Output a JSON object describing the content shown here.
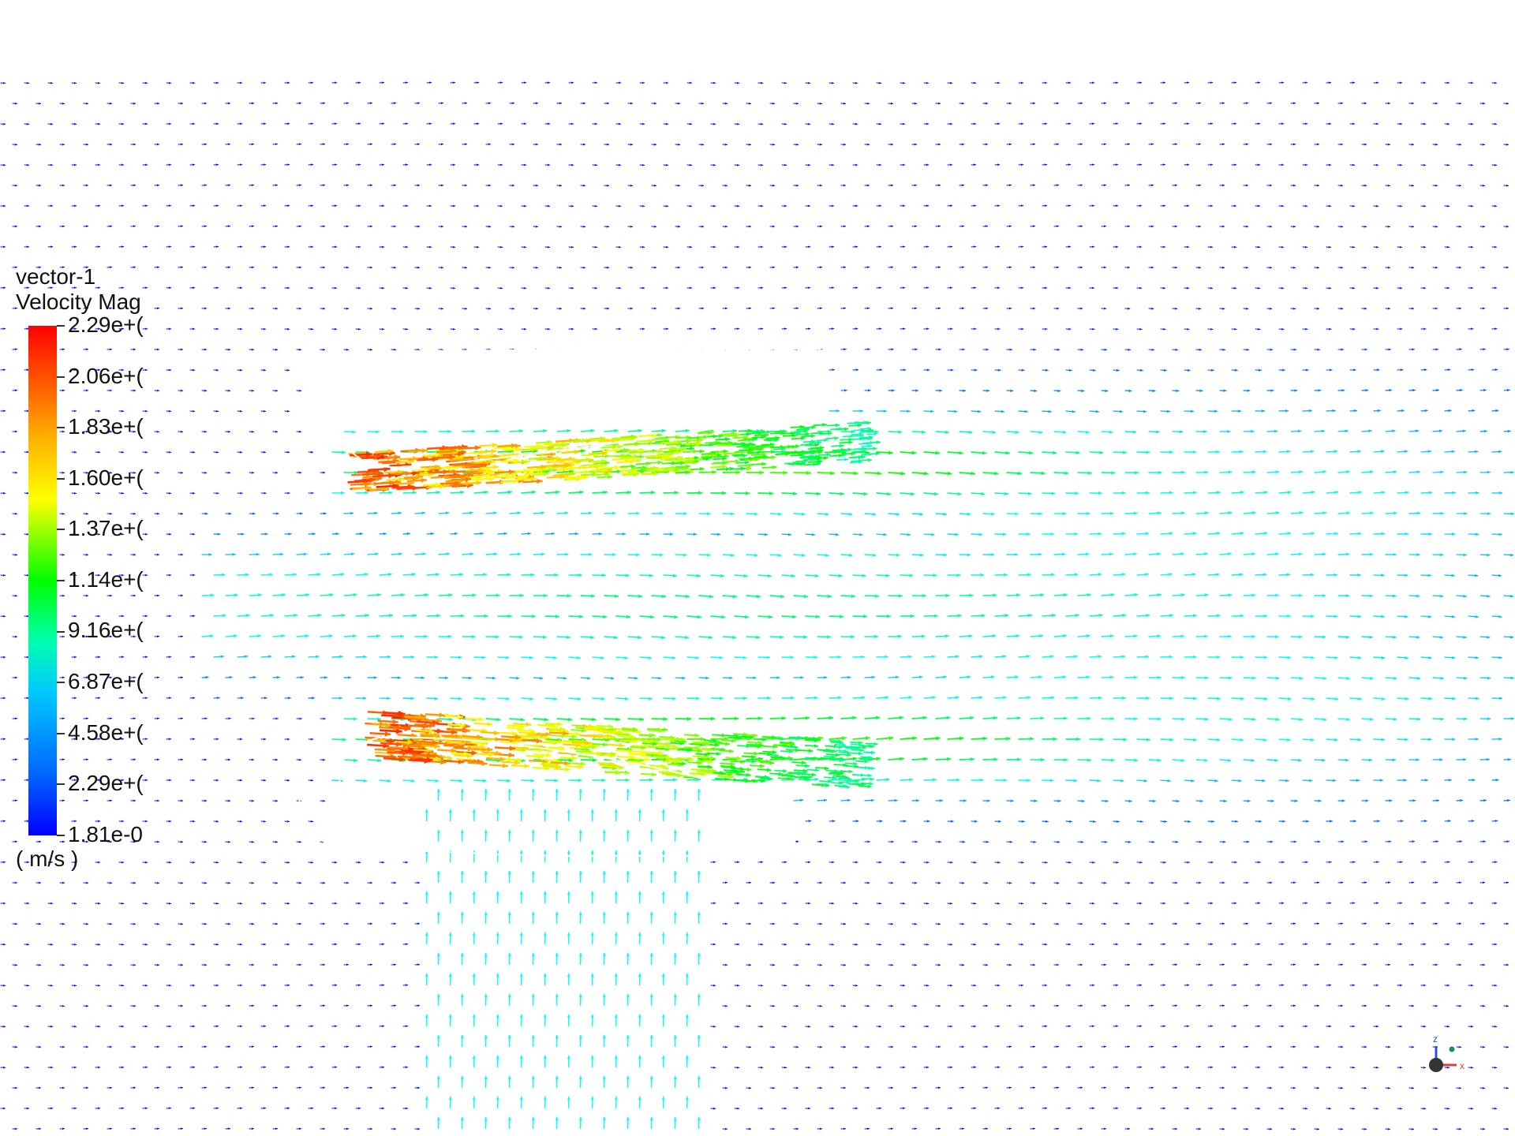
{
  "legend": {
    "name": "vector-1",
    "quantity": "Velocity Mag",
    "units": "( m/s )",
    "labels": [
      "2.29e+(",
      "2.06e+(",
      "1.83e+(",
      "1.60e+(",
      "1.37e+(",
      "1.14e+(",
      "9.16e+(",
      "6.87e+(",
      "4.58e+(",
      "2.29e+(",
      "1.81e-0"
    ],
    "colors": [
      "#ff0000",
      "#ff5000",
      "#ff9000",
      "#ffff00",
      "#a0ff00",
      "#00ff00",
      "#00ff90",
      "#00ffff",
      "#00a0ff",
      "#0050ff",
      "#0000ff"
    ]
  },
  "axes_triad": {
    "axis_labels": [
      "x",
      "z"
    ],
    "x_color": "#d84040",
    "z_color": "#2a4fd0",
    "y_color": "#1a8a6a"
  },
  "colors": {
    "background": "#ffffff",
    "wall": "#ffffff"
  }
}
